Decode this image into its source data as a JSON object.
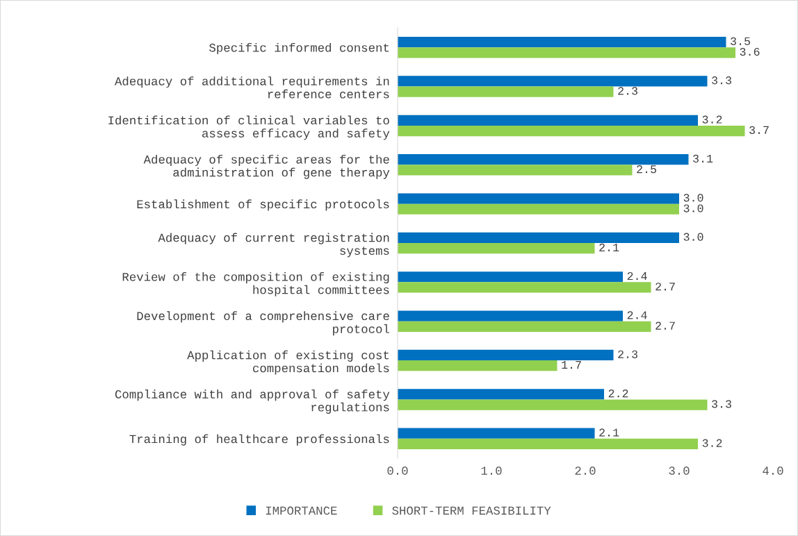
{
  "chart_data": {
    "type": "bar",
    "orientation": "horizontal",
    "categories": [
      "Specific informed consent",
      "Adequacy of additional requirements in\nreference centers",
      "Identification of clinical variables to\nassess efficacy and safety",
      "Adequacy of specific areas for the\nadministration of gene therapy",
      "Establishment of specific protocols",
      "Adequacy of current registration\nsystems",
      "Review of the composition of existing\nhospital committees",
      "Development of a comprehensive care\nprotocol",
      "Application of existing cost\ncompensation models",
      "Compliance with and approval of safety\nregulations",
      "Training of healthcare professionals"
    ],
    "series": [
      {
        "name": "IMPORTANCE",
        "color": "#0070c0",
        "values": [
          3.5,
          3.3,
          3.2,
          3.1,
          3.0,
          3.0,
          2.4,
          2.4,
          2.3,
          2.2,
          2.1
        ],
        "value_labels": [
          "3.5",
          "3.3",
          "3.2",
          "3.1",
          "3.0",
          "3.0",
          "2.4",
          "2.4",
          "2.3",
          "2.2",
          "2.1"
        ]
      },
      {
        "name": "SHORT-TERM FEASIBILITY",
        "color": "#92d050",
        "values": [
          3.6,
          2.3,
          3.7,
          2.5,
          3.0,
          2.1,
          2.7,
          2.7,
          1.7,
          3.3,
          3.2
        ],
        "value_labels": [
          "3.6",
          "2.3",
          "3.7",
          "2.5",
          "3.0",
          "2.1",
          "2.7",
          "2.7",
          "1.7",
          "3.3",
          "3.2"
        ]
      }
    ],
    "xlim": [
      0,
      4
    ],
    "xticks": [
      {
        "value": 0,
        "label": "0.0"
      },
      {
        "value": 1,
        "label": "1.0"
      },
      {
        "value": 2,
        "label": "2.0"
      },
      {
        "value": 3,
        "label": "3.0"
      },
      {
        "value": 4,
        "label": "4.0"
      }
    ],
    "grid": false,
    "legend": "bottom"
  }
}
